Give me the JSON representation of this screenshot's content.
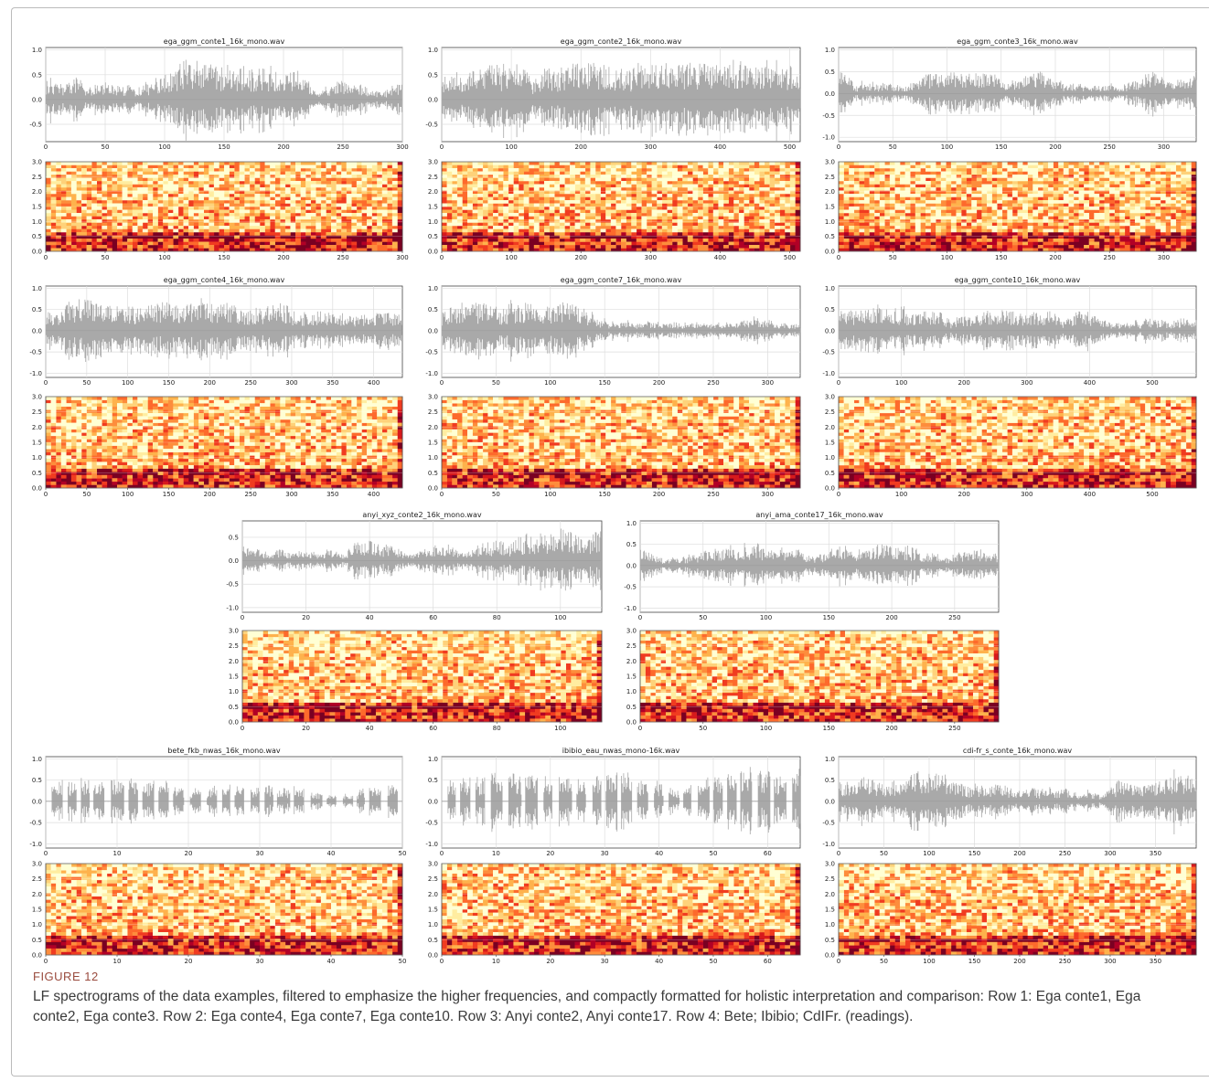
{
  "figure": {
    "panels": [
      {
        "title": "ega_ggm_conte1_16k_mono.wav",
        "xlim": [
          0,
          300
        ],
        "xticks": [
          "0",
          "50",
          "100",
          "150",
          "200",
          "250",
          "300"
        ],
        "ylim": [
          -0.85,
          1.05
        ],
        "yticks": [
          "1.0",
          "0.5",
          "0.0",
          "-0.5"
        ],
        "spec_ylim": [
          0,
          3
        ],
        "spec_yticks": [
          "0.0",
          "0.5",
          "1.0",
          "1.5",
          "2.0",
          "2.5",
          "3.0"
        ]
      },
      {
        "title": "ega_ggm_conte2_16k_mono.wav",
        "xlim": [
          0,
          515
        ],
        "xticks": [
          "0",
          "100",
          "200",
          "300",
          "400",
          "500"
        ],
        "ylim": [
          -0.85,
          1.05
        ],
        "yticks": [
          "1.0",
          "0.5",
          "0.0",
          "-0.5"
        ],
        "spec_ylim": [
          0,
          3
        ],
        "spec_yticks": [
          "0.0",
          "0.5",
          "1.0",
          "1.5",
          "2.0",
          "2.5",
          "3.0"
        ]
      },
      {
        "title": "ega_ggm_conte3_16k_mono.wav",
        "xlim": [
          0,
          330
        ],
        "xticks": [
          "0",
          "50",
          "100",
          "150",
          "200",
          "250",
          "300"
        ],
        "ylim": [
          -1.1,
          1.05
        ],
        "yticks": [
          "1.0",
          "0.5",
          "0.0",
          "-0.5",
          "-1.0"
        ],
        "spec_ylim": [
          0,
          3
        ],
        "spec_yticks": [
          "0.0",
          "0.5",
          "1.0",
          "1.5",
          "2.0",
          "2.5",
          "3.0"
        ]
      },
      {
        "title": "ega_ggm_conte4_16k_mono.wav",
        "xlim": [
          0,
          435
        ],
        "xticks": [
          "0",
          "50",
          "100",
          "150",
          "200",
          "250",
          "300",
          "350",
          "400"
        ],
        "ylim": [
          -1.1,
          1.05
        ],
        "yticks": [
          "1.0",
          "0.5",
          "0.0",
          "-0.5",
          "-1.0"
        ],
        "spec_ylim": [
          0,
          3
        ],
        "spec_yticks": [
          "0.0",
          "0.5",
          "1.0",
          "1.5",
          "2.0",
          "2.5",
          "3.0"
        ]
      },
      {
        "title": "ega_ggm_conte7_16k_mono.wav",
        "xlim": [
          0,
          330
        ],
        "xticks": [
          "0",
          "50",
          "100",
          "150",
          "200",
          "250",
          "300"
        ],
        "ylim": [
          -1.1,
          1.05
        ],
        "yticks": [
          "1.0",
          "0.5",
          "0.0",
          "-0.5",
          "-1.0"
        ],
        "spec_ylim": [
          0,
          3
        ],
        "spec_yticks": [
          "0.0",
          "0.5",
          "1.0",
          "1.5",
          "2.0",
          "2.5",
          "3.0"
        ]
      },
      {
        "title": "ega_ggm_conte10_16k_mono.wav",
        "xlim": [
          0,
          570
        ],
        "xticks": [
          "0",
          "100",
          "200",
          "300",
          "400",
          "500"
        ],
        "ylim": [
          -1.1,
          1.05
        ],
        "yticks": [
          "1.0",
          "0.5",
          "0.0",
          "-0.5",
          "-1.0"
        ],
        "spec_ylim": [
          0,
          3
        ],
        "spec_yticks": [
          "0.0",
          "0.5",
          "1.0",
          "1.5",
          "2.0",
          "2.5",
          "3.0"
        ]
      },
      {
        "title": "anyi_xyz_conte2_16k_mono.wav",
        "xlim": [
          0,
          113
        ],
        "xticks": [
          "0",
          "20",
          "40",
          "60",
          "80",
          "100"
        ],
        "ylim": [
          -1.1,
          0.85
        ],
        "yticks": [
          "0.5",
          "0.0",
          "-0.5",
          "-1.0"
        ],
        "spec_ylim": [
          0,
          3
        ],
        "spec_yticks": [
          "0.0",
          "0.5",
          "1.0",
          "1.5",
          "2.0",
          "2.5",
          "3.0"
        ]
      },
      {
        "title": "anyi_ama_conte17_16k_mono.wav",
        "xlim": [
          0,
          285
        ],
        "xticks": [
          "0",
          "50",
          "100",
          "150",
          "200",
          "250"
        ],
        "ylim": [
          -1.1,
          1.05
        ],
        "yticks": [
          "1.0",
          "0.5",
          "0.0",
          "-0.5",
          "-1.0"
        ],
        "spec_ylim": [
          0,
          3
        ],
        "spec_yticks": [
          "0.0",
          "0.5",
          "1.0",
          "1.5",
          "2.0",
          "2.5",
          "3.0"
        ]
      },
      {
        "title": "bete_fkb_nwas_16k_mono.wav",
        "xlim": [
          0,
          50
        ],
        "xticks": [
          "0",
          "10",
          "20",
          "30",
          "40",
          "50"
        ],
        "ylim": [
          -1.1,
          1.05
        ],
        "yticks": [
          "1.0",
          "0.5",
          "0.0",
          "-0.5",
          "-1.0"
        ],
        "spec_ylim": [
          0,
          3
        ],
        "spec_yticks": [
          "0.0",
          "0.5",
          "1.0",
          "1.5",
          "2.0",
          "2.5",
          "3.0"
        ]
      },
      {
        "title": "ibibio_eau_nwas_mono-16k.wav",
        "xlim": [
          0,
          66
        ],
        "xticks": [
          "0",
          "10",
          "20",
          "30",
          "40",
          "50",
          "60"
        ],
        "ylim": [
          -1.1,
          1.05
        ],
        "yticks": [
          "1.0",
          "0.5",
          "0.0",
          "-0.5",
          "-1.0"
        ],
        "spec_ylim": [
          0,
          3
        ],
        "spec_yticks": [
          "0.0",
          "0.5",
          "1.0",
          "1.5",
          "2.0",
          "2.5",
          "3.0"
        ]
      },
      {
        "title": "cdi-fr_s_conte_16k_mono.wav",
        "xlim": [
          0,
          395
        ],
        "xticks": [
          "0",
          "50",
          "100",
          "150",
          "200",
          "250",
          "300",
          "350"
        ],
        "ylim": [
          -1.1,
          1.05
        ],
        "yticks": [
          "1.0",
          "0.5",
          "0.0",
          "-0.5",
          "-1.0"
        ],
        "spec_ylim": [
          0,
          3
        ],
        "spec_yticks": [
          "0.0",
          "0.5",
          "1.0",
          "1.5",
          "2.0",
          "2.5",
          "3.0"
        ]
      }
    ]
  },
  "caption": {
    "label": "FIGURE 12",
    "text": "LF spectrograms of the data examples, filtered to emphasize the higher frequencies, and compactly formatted for holistic interpretation and comparison: Row 1: Ega conte1, Ega conte2, Ega conte3. Row 2: Ega conte4, Ega conte7, Ega conte10. Row 3: Anyi conte2, Anyi conte17. Row 4: Bete; Ibibio; CdIFr. (readings)."
  }
}
